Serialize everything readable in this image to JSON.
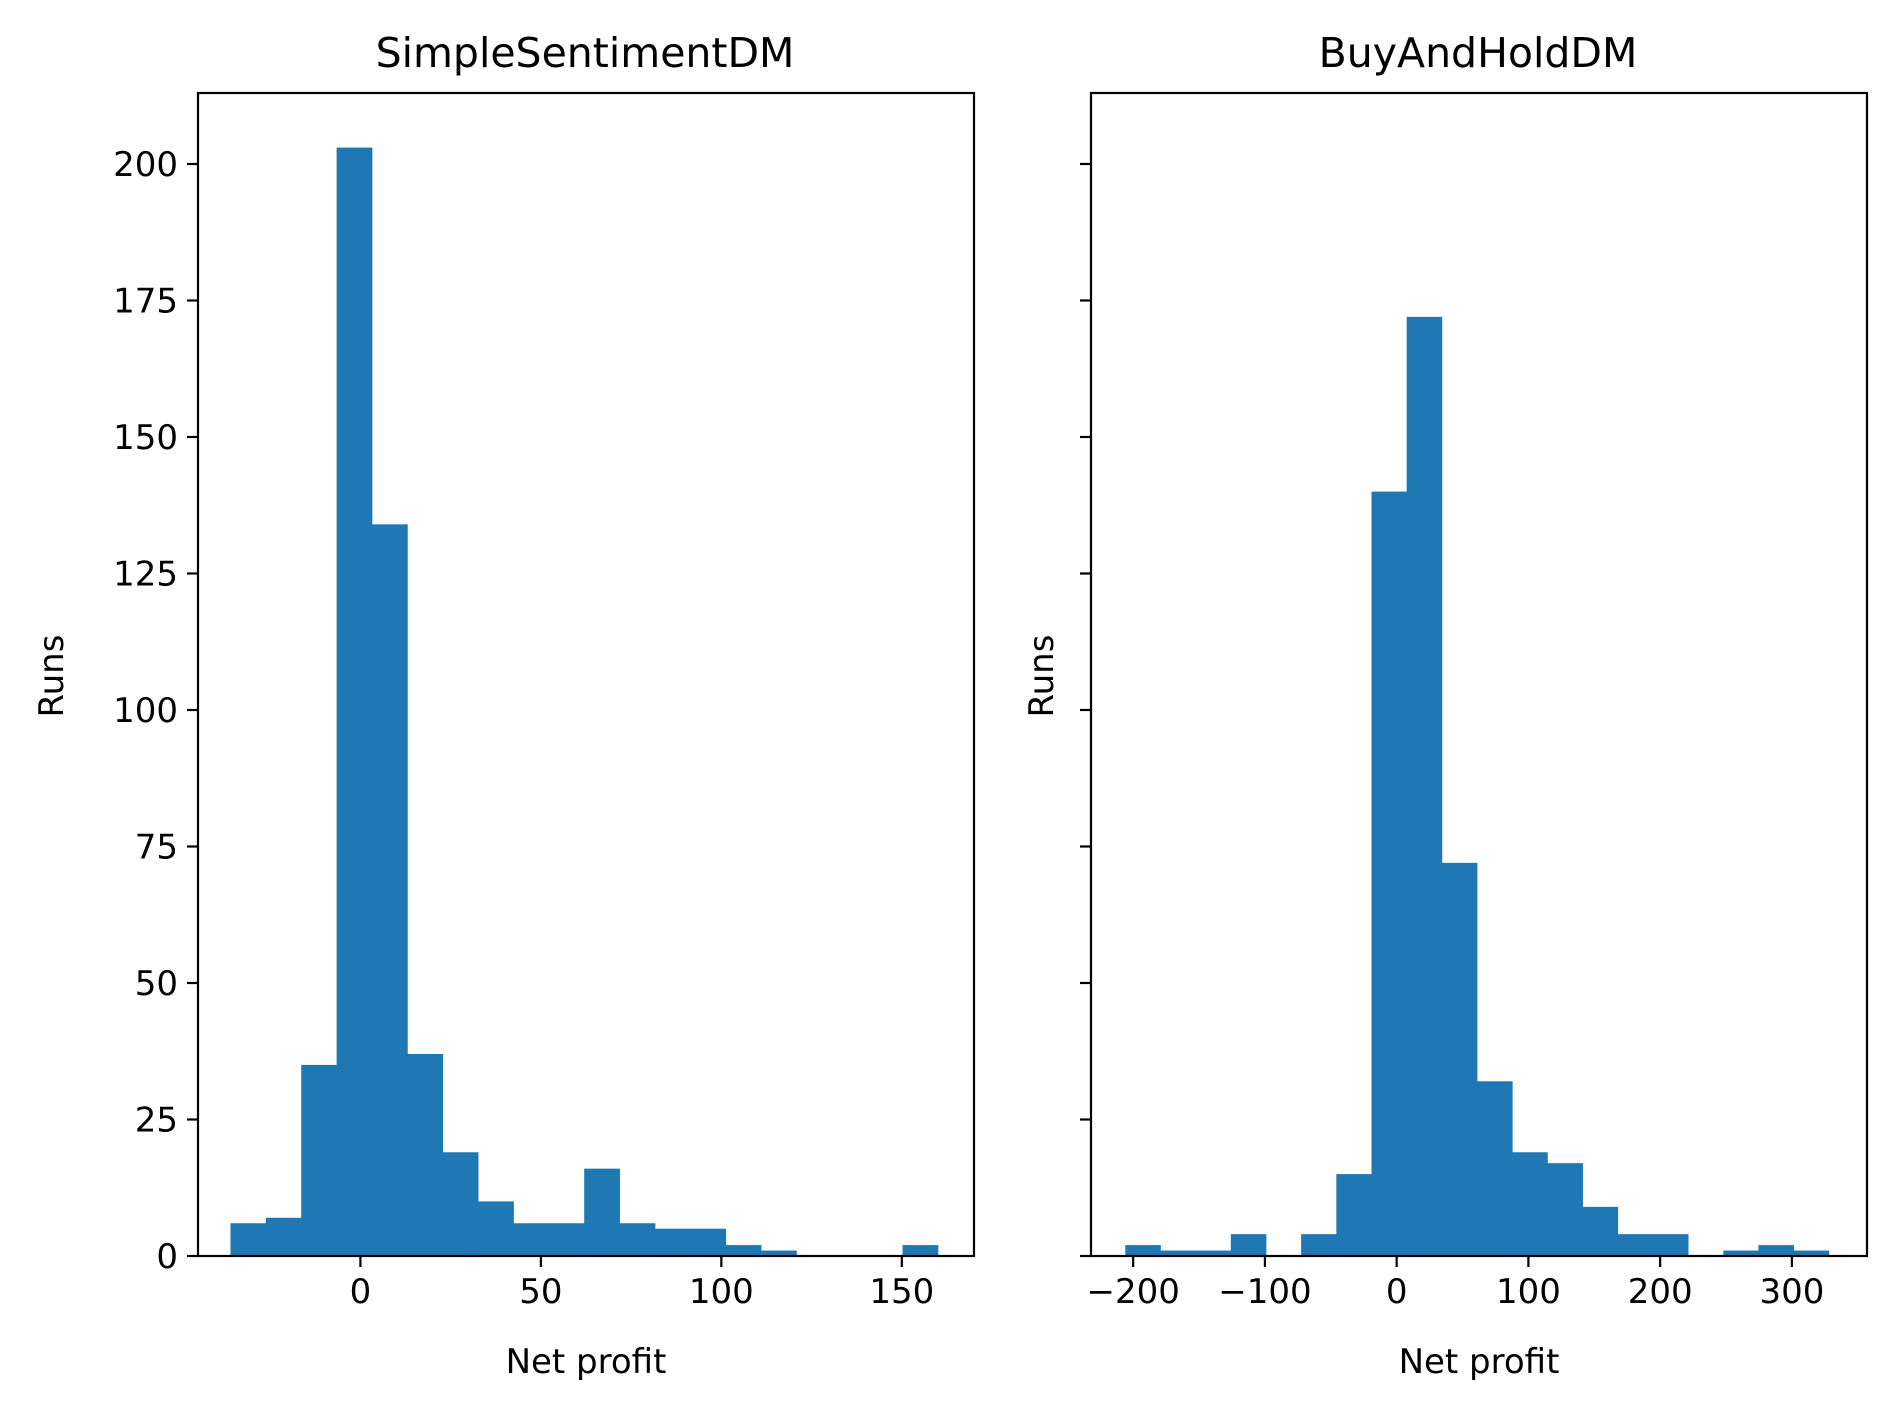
{
  "chart_data": [
    {
      "type": "bar",
      "subtype": "histogram",
      "title": "SimpleSentimentDM",
      "xlabel": "Net profit",
      "ylabel": "Runs",
      "color": "#1f77b4",
      "xlim": [
        -45,
        170
      ],
      "ylim": [
        0,
        213
      ],
      "xticks": [
        0,
        50,
        100,
        150
      ],
      "xtick_labels": [
        "0",
        "50",
        "100",
        "150"
      ],
      "yticks": [
        0,
        25,
        50,
        75,
        100,
        125,
        150,
        175,
        200
      ],
      "ytick_labels": [
        "0",
        "25",
        "50",
        "75",
        "100",
        "125",
        "150",
        "175",
        "200"
      ],
      "show_ytick_labels": true,
      "bin_edges": [
        -36,
        -26.2,
        -16.4,
        -6.6,
        3.2,
        13.0,
        22.8,
        32.6,
        42.4,
        52.2,
        62.0,
        71.8,
        81.6,
        91.4,
        101.2,
        111.0,
        120.8,
        130.6,
        140.4,
        150.2,
        160
      ],
      "values": [
        6,
        7,
        35,
        203,
        134,
        37,
        19,
        10,
        6,
        6,
        16,
        6,
        5,
        5,
        2,
        1,
        0,
        0,
        0,
        2
      ],
      "grid": false,
      "legend": false
    },
    {
      "type": "bar",
      "subtype": "histogram",
      "title": "BuyAndHoldDM",
      "xlabel": "Net profit",
      "ylabel": "Runs",
      "color": "#1f77b4",
      "xlim": [
        -232,
        357
      ],
      "ylim": [
        0,
        213
      ],
      "xticks": [
        -200,
        -100,
        0,
        100,
        200,
        300
      ],
      "xtick_labels": [
        "−200",
        "−100",
        "0",
        "100",
        "200",
        "300"
      ],
      "yticks": [
        0,
        25,
        50,
        75,
        100,
        125,
        150,
        175,
        200
      ],
      "show_ytick_labels": false,
      "bin_edges": [
        -206,
        -179.3,
        -152.6,
        -125.9,
        -99.2,
        -72.5,
        -45.8,
        -19.1,
        7.6,
        34.3,
        61.0,
        87.7,
        114.4,
        141.1,
        167.8,
        194.5,
        221.2,
        247.9,
        274.6,
        301.3,
        328
      ],
      "values": [
        2,
        1,
        1,
        4,
        0,
        4,
        15,
        140,
        172,
        72,
        32,
        19,
        17,
        9,
        4,
        4,
        0,
        1,
        2,
        1
      ],
      "grid": false,
      "legend": false
    }
  ]
}
